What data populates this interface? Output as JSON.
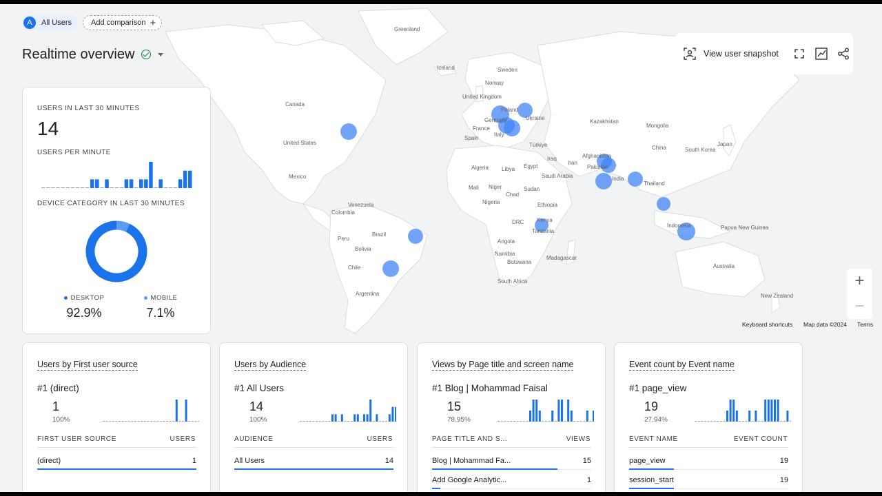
{
  "header": {
    "segment_badge": "A",
    "segment_label": "All Users",
    "add_comparison": "Add comparison",
    "page_title": "Realtime overview"
  },
  "toolbar": {
    "snapshot_label": "View user snapshot",
    "icons": [
      "snapshot-icon",
      "fullscreen-icon",
      "insights-icon",
      "share-icon"
    ]
  },
  "map": {
    "labels": [
      {
        "text": "Greenland"
      },
      {
        "text": "Iceland"
      },
      {
        "text": "Sweden"
      },
      {
        "text": "Norway"
      },
      {
        "text": "United Kingdom"
      },
      {
        "text": "Poland"
      },
      {
        "text": "Ukraine"
      },
      {
        "text": "Germany"
      },
      {
        "text": "France"
      },
      {
        "text": "Spain"
      },
      {
        "text": "Italy"
      },
      {
        "text": "Türkiye"
      },
      {
        "text": "Kazakhstan"
      },
      {
        "text": "Mongolia"
      },
      {
        "text": "China"
      },
      {
        "text": "South Korea"
      },
      {
        "text": "Japan"
      },
      {
        "text": "Afghanistan"
      },
      {
        "text": "Pakistan"
      },
      {
        "text": "India"
      },
      {
        "text": "Iraq"
      },
      {
        "text": "Iran"
      },
      {
        "text": "Saudi Arabia"
      },
      {
        "text": "Thailand"
      },
      {
        "text": "Indonesia"
      },
      {
        "text": "Papua New Guinea"
      },
      {
        "text": "Algeria"
      },
      {
        "text": "Libya"
      },
      {
        "text": "Egypt"
      },
      {
        "text": "Mali"
      },
      {
        "text": "Niger"
      },
      {
        "text": "Chad"
      },
      {
        "text": "Sudan"
      },
      {
        "text": "Nigeria"
      },
      {
        "text": "Ethiopia"
      },
      {
        "text": "DRC"
      },
      {
        "text": "Kenya"
      },
      {
        "text": "Tanzania"
      },
      {
        "text": "Angola"
      },
      {
        "text": "Namibia"
      },
      {
        "text": "Botswana"
      },
      {
        "text": "Madagascar"
      },
      {
        "text": "South Africa"
      },
      {
        "text": "Canada"
      },
      {
        "text": "United States"
      },
      {
        "text": "Mexico"
      },
      {
        "text": "Venezuela"
      },
      {
        "text": "Colombia"
      },
      {
        "text": "Brazil"
      },
      {
        "text": "Peru"
      },
      {
        "text": "Bolivia"
      },
      {
        "text": "Chile"
      },
      {
        "text": "Argentina"
      },
      {
        "text": "Australia"
      },
      {
        "text": "New Zealand"
      }
    ],
    "keyboard_shortcuts": "Keyboard shortcuts",
    "map_data": "Map data ©2024",
    "terms": "Terms",
    "zoom_in": "+",
    "zoom_out": "−"
  },
  "realtime": {
    "users_label": "USERS IN LAST 30 MINUTES",
    "users_value": "14",
    "per_minute_label": "USERS PER MINUTE",
    "per_minute_values": [
      0,
      0,
      0,
      0,
      0,
      0,
      0,
      0,
      0,
      0,
      1,
      1,
      0,
      1,
      0,
      0,
      0,
      1,
      1,
      0,
      1,
      1,
      3,
      0,
      1,
      0,
      0,
      0,
      1,
      2,
      2
    ],
    "device_label": "DEVICE CATEGORY IN LAST 30 MINUTES",
    "desktop_label": "DESKTOP",
    "desktop_value": "92.9%",
    "desktop_share": 92.9,
    "mobile_label": "MOBILE",
    "mobile_value": "7.1%",
    "mobile_share": 7.1,
    "desktop_color": "#1a73e8",
    "mobile_color": "#5b9cf2"
  },
  "cards": [
    {
      "title_a": "Users by First user source",
      "rank": "#1  (direct)",
      "value": "1",
      "pct": "100%",
      "col1": "FIRST USER SOURCE",
      "col2": "USERS",
      "spark": [
        0,
        0,
        0,
        0,
        0,
        0,
        0,
        0,
        0,
        0,
        0,
        0,
        0,
        0,
        0,
        0,
        0,
        0,
        0,
        0,
        0,
        0,
        0,
        1,
        0,
        0,
        1,
        0,
        0,
        0,
        0
      ],
      "rows": [
        {
          "k": "(direct)",
          "v": "1",
          "share": 1.0
        }
      ]
    },
    {
      "title_a": "Users by Audience",
      "rank": "#1  All Users",
      "value": "14",
      "pct": "100%",
      "col1": "AUDIENCE",
      "col2": "USERS",
      "spark": [
        0,
        0,
        0,
        0,
        0,
        0,
        0,
        0,
        0,
        0,
        1,
        1,
        0,
        1,
        0,
        0,
        0,
        1,
        1,
        0,
        1,
        1,
        3,
        0,
        1,
        0,
        0,
        0,
        1,
        2,
        2
      ],
      "rows": [
        {
          "k": "All Users",
          "v": "14",
          "share": 1.0
        }
      ]
    },
    {
      "title_a": "Views by Page title and screen name",
      "rank": "#1  Blog | Mohammad Faisal",
      "value": "15",
      "pct": "78.95%",
      "col1": "PAGE TITLE AND S...",
      "col2": "VIEWS",
      "spark": [
        0,
        0,
        0,
        0,
        0,
        0,
        0,
        0,
        0,
        0,
        1,
        2,
        2,
        1,
        0,
        0,
        0,
        1,
        0,
        2,
        2,
        0,
        2,
        1,
        0,
        0,
        0,
        0,
        1,
        0,
        1
      ],
      "rows": [
        {
          "k": "Blog | Mohammad Fa...",
          "v": "15",
          "share": 0.79
        },
        {
          "k": "Add Google Analytic...",
          "v": "1",
          "share": 0.05
        }
      ]
    },
    {
      "title_a": "Event count by Event name",
      "rank": "#1  page_view",
      "value": "19",
      "pct": "27.94%",
      "col1": "EVENT NAME",
      "col2": "EVENT COUNT",
      "spark": [
        0,
        0,
        0,
        0,
        0,
        0,
        0,
        0,
        0,
        0,
        1,
        2,
        2,
        1,
        0,
        0,
        0,
        1,
        0,
        1,
        0,
        0,
        2,
        2,
        2,
        2,
        2,
        0,
        0,
        1,
        0
      ],
      "rows": [
        {
          "k": "page_view",
          "v": "19",
          "share": 0.28
        },
        {
          "k": "session_start",
          "v": "19",
          "share": 0.28
        }
      ]
    }
  ]
}
